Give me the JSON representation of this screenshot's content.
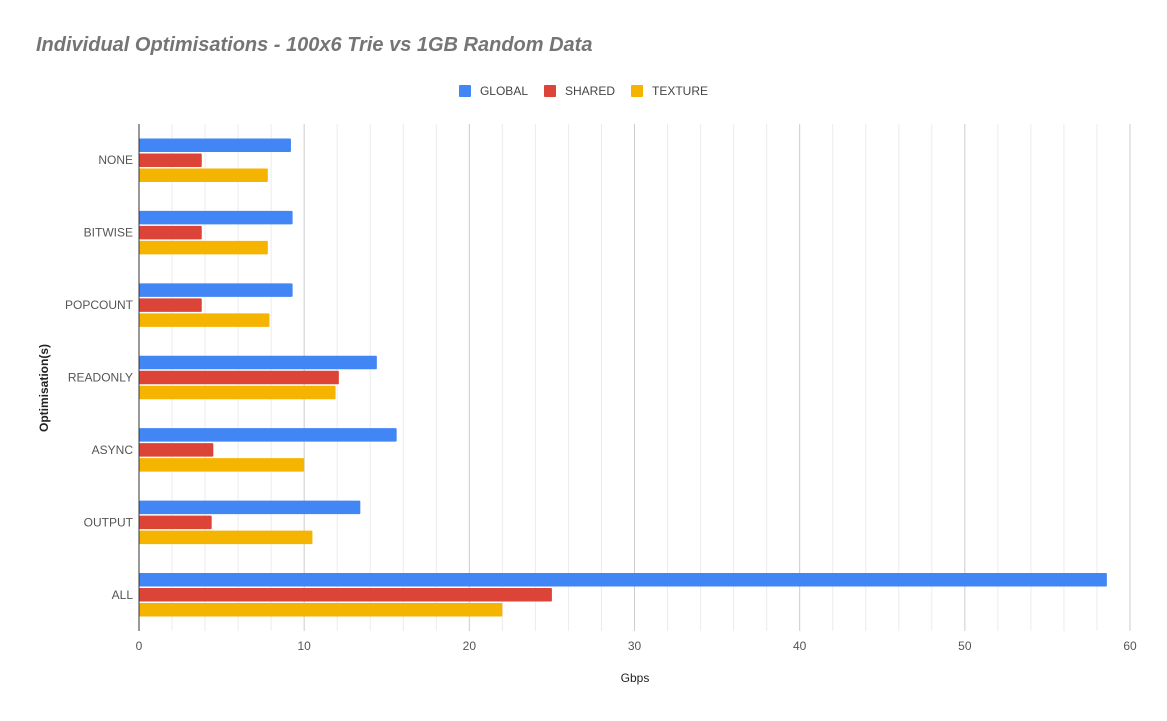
{
  "chart_data": {
    "type": "bar",
    "orientation": "horizontal",
    "title": "Individual Optimisations - 100x6 Trie vs 1GB Random Data",
    "xlabel": "Gbps",
    "ylabel": "Optimisation(s)",
    "xlim": [
      0,
      60
    ],
    "x_ticks": [
      "0",
      "10",
      "20",
      "30",
      "40",
      "50",
      "60"
    ],
    "grid": true,
    "legend_position": "top",
    "categories": [
      "NONE",
      "BITWISE",
      "POPCOUNT",
      "READONLY",
      "ASYNC",
      "OUTPUT",
      "ALL"
    ],
    "series": [
      {
        "name": "GLOBAL",
        "color": "#4285f4",
        "values": [
          9.2,
          9.3,
          9.3,
          14.4,
          15.6,
          13.4,
          58.6
        ]
      },
      {
        "name": "SHARED",
        "color": "#db4437",
        "values": [
          3.8,
          3.8,
          3.8,
          12.1,
          4.5,
          4.4,
          25.0
        ]
      },
      {
        "name": "TEXTURE",
        "color": "#f4b400",
        "values": [
          7.8,
          7.8,
          7.9,
          11.9,
          10.0,
          10.5,
          22.0
        ]
      }
    ]
  }
}
